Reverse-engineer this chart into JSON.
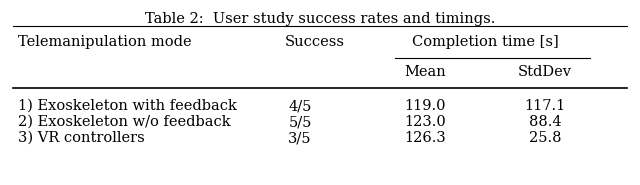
{
  "title": "Table 2:  User study success rates and timings.",
  "col_headers": [
    "Telemanipulation mode",
    "Success",
    "Completion time [s]"
  ],
  "sub_headers": [
    "Mean",
    "StdDev"
  ],
  "rows": [
    [
      "1) Exoskeleton with feedback",
      "4/5",
      "119.0",
      "117.1"
    ],
    [
      "2) Exoskeleton w/o feedback",
      "5/5",
      "123.0",
      "88.4"
    ],
    [
      "3) VR controllers",
      "3/5",
      "126.3",
      "25.8"
    ]
  ],
  "bg_color": "#ffffff",
  "text_color": "#000000",
  "font_size": 10.5,
  "title_font_size": 10.5
}
